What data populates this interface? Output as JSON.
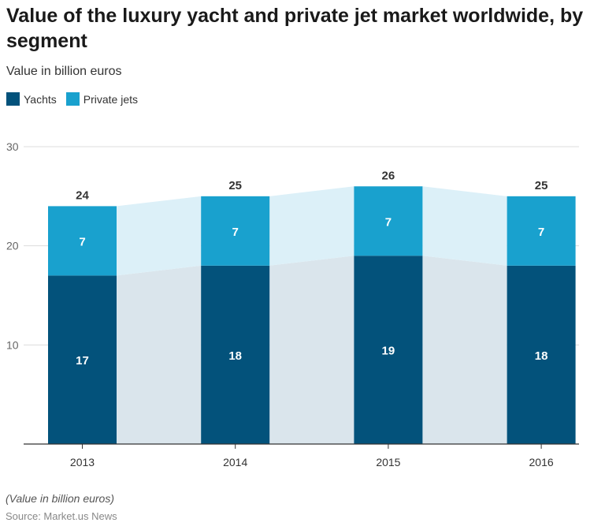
{
  "chart_data": {
    "type": "bar",
    "stacked": true,
    "title": "Value of the luxury yacht and private jet market worldwide, by segment",
    "subtitle": "Value in billion euros",
    "categories": [
      "2013",
      "2014",
      "2015",
      "2016"
    ],
    "series": [
      {
        "name": "Yachts",
        "values": [
          17,
          18,
          19,
          18
        ],
        "color": "#03527B",
        "connector_color": "#DAE5EC"
      },
      {
        "name": "Private jets",
        "values": [
          7,
          7,
          7,
          7
        ],
        "color": "#19A1CE",
        "connector_color": "#DCF0F8"
      }
    ],
    "totals": [
      24,
      25,
      26,
      25
    ],
    "ylim": [
      0,
      30
    ],
    "yticks": [
      10,
      20,
      30
    ],
    "grid": true,
    "legend": "top-left",
    "note": "(Value in billion euros)",
    "source": "Source: Market.us News"
  }
}
